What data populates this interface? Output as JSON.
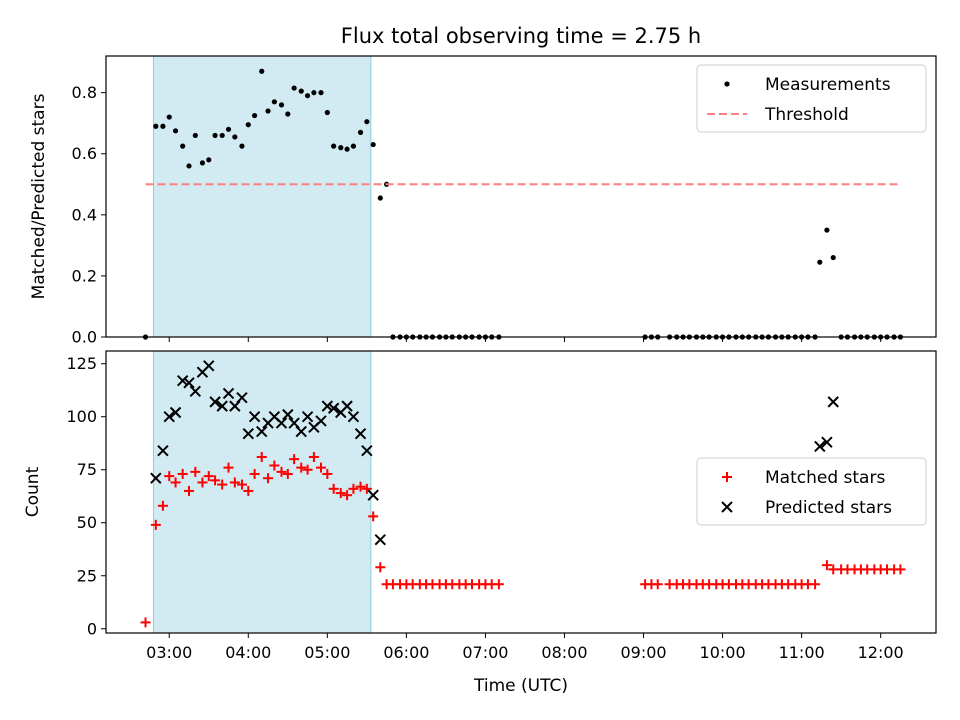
{
  "title": "Flux total observing time = 2.75 h",
  "chart_data": [
    {
      "type": "scatter",
      "panel": "top",
      "title": "Flux total observing time = 2.75 h",
      "ylabel": "Matched/Predicted stars",
      "xlabel": "",
      "x_unit": "hours (UTC)",
      "xlim": [
        2.2,
        12.7
      ],
      "ylim": [
        0.0,
        0.92
      ],
      "yticks": [
        0.0,
        0.2,
        0.4,
        0.6,
        0.8
      ],
      "ytick_labels": [
        "0.0",
        "0.2",
        "0.4",
        "0.6",
        "0.8"
      ],
      "shaded_interval": {
        "x0": 2.8,
        "x1": 5.55,
        "color": "#add8e6"
      },
      "legend": {
        "placement": "upper right",
        "entries": [
          "Measurements",
          "Threshold"
        ]
      },
      "series": [
        {
          "name": "Measurements",
          "marker": "dot",
          "color": "#000000",
          "points": [
            [
              2.7,
              0.0
            ],
            [
              2.83,
              0.69
            ],
            [
              2.92,
              0.69
            ],
            [
              3.0,
              0.72
            ],
            [
              3.08,
              0.675
            ],
            [
              3.17,
              0.625
            ],
            [
              3.25,
              0.56
            ],
            [
              3.33,
              0.66
            ],
            [
              3.42,
              0.57
            ],
            [
              3.5,
              0.58
            ],
            [
              3.58,
              0.66
            ],
            [
              3.67,
              0.66
            ],
            [
              3.75,
              0.68
            ],
            [
              3.83,
              0.655
            ],
            [
              3.92,
              0.625
            ],
            [
              4.0,
              0.695
            ],
            [
              4.08,
              0.725
            ],
            [
              4.17,
              0.87
            ],
            [
              4.25,
              0.74
            ],
            [
              4.33,
              0.77
            ],
            [
              4.42,
              0.76
            ],
            [
              4.5,
              0.73
            ],
            [
              4.58,
              0.815
            ],
            [
              4.67,
              0.805
            ],
            [
              4.75,
              0.79
            ],
            [
              4.83,
              0.8
            ],
            [
              4.92,
              0.8
            ],
            [
              5.0,
              0.735
            ],
            [
              5.08,
              0.625
            ],
            [
              5.17,
              0.62
            ],
            [
              5.25,
              0.615
            ],
            [
              5.33,
              0.625
            ],
            [
              5.42,
              0.67
            ],
            [
              5.5,
              0.705
            ],
            [
              5.58,
              0.63
            ],
            [
              5.67,
              0.455
            ],
            [
              5.75,
              0.5
            ],
            [
              5.83,
              0.0
            ],
            [
              5.92,
              0.0
            ],
            [
              6.0,
              0.0
            ],
            [
              6.08,
              0.0
            ],
            [
              6.17,
              0.0
            ],
            [
              6.25,
              0.0
            ],
            [
              6.33,
              0.0
            ],
            [
              6.42,
              0.0
            ],
            [
              6.5,
              0.0
            ],
            [
              6.58,
              0.0
            ],
            [
              6.67,
              0.0
            ],
            [
              6.75,
              0.0
            ],
            [
              6.83,
              0.0
            ],
            [
              6.92,
              0.0
            ],
            [
              7.0,
              0.0
            ],
            [
              7.08,
              0.0
            ],
            [
              7.17,
              0.0
            ],
            [
              9.02,
              0.0
            ],
            [
              9.1,
              0.0
            ],
            [
              9.18,
              0.0
            ],
            [
              9.33,
              0.0
            ],
            [
              9.42,
              0.0
            ],
            [
              9.5,
              0.0
            ],
            [
              9.58,
              0.0
            ],
            [
              9.67,
              0.0
            ],
            [
              9.75,
              0.0
            ],
            [
              9.83,
              0.0
            ],
            [
              9.92,
              0.0
            ],
            [
              10.0,
              0.0
            ],
            [
              10.08,
              0.0
            ],
            [
              10.17,
              0.0
            ],
            [
              10.25,
              0.0
            ],
            [
              10.33,
              0.0
            ],
            [
              10.42,
              0.0
            ],
            [
              10.5,
              0.0
            ],
            [
              10.58,
              0.0
            ],
            [
              10.67,
              0.0
            ],
            [
              10.75,
              0.0
            ],
            [
              10.83,
              0.0
            ],
            [
              10.92,
              0.0
            ],
            [
              11.0,
              0.0
            ],
            [
              11.08,
              0.0
            ],
            [
              11.17,
              0.0
            ],
            [
              11.23,
              0.245
            ],
            [
              11.32,
              0.35
            ],
            [
              11.4,
              0.26
            ],
            [
              11.5,
              0.0
            ],
            [
              11.58,
              0.0
            ],
            [
              11.67,
              0.0
            ],
            [
              11.75,
              0.0
            ],
            [
              11.83,
              0.0
            ],
            [
              11.92,
              0.0
            ],
            [
              12.0,
              0.0
            ],
            [
              12.08,
              0.0
            ],
            [
              12.17,
              0.0
            ],
            [
              12.25,
              0.0
            ]
          ]
        },
        {
          "name": "Threshold",
          "style": "dashed",
          "color": "#ff7f7f",
          "points": [
            [
              2.7,
              0.5
            ],
            [
              12.25,
              0.5
            ]
          ]
        }
      ]
    },
    {
      "type": "scatter",
      "panel": "bottom",
      "ylabel": "Count",
      "xlabel": "Time (UTC)",
      "x_unit": "hours (UTC)",
      "xlim": [
        2.2,
        12.7
      ],
      "ylim": [
        -2,
        131
      ],
      "xticks": [
        3,
        4,
        5,
        6,
        7,
        8,
        9,
        10,
        11,
        12
      ],
      "xtick_labels": [
        "03:00",
        "04:00",
        "05:00",
        "06:00",
        "07:00",
        "08:00",
        "09:00",
        "10:00",
        "11:00",
        "12:00"
      ],
      "yticks": [
        0,
        25,
        50,
        75,
        100,
        125
      ],
      "ytick_labels": [
        "0",
        "25",
        "50",
        "75",
        "100",
        "125"
      ],
      "shaded_interval": {
        "x0": 2.8,
        "x1": 5.55,
        "color": "#add8e6"
      },
      "legend": {
        "placement": "center right",
        "entries": [
          "Matched stars",
          "Predicted stars"
        ]
      },
      "series": [
        {
          "name": "Matched stars",
          "marker": "plus",
          "color": "#ff0000",
          "points": [
            [
              2.7,
              3
            ],
            [
              2.83,
              49
            ],
            [
              2.92,
              58
            ],
            [
              3.0,
              72
            ],
            [
              3.08,
              69
            ],
            [
              3.17,
              73
            ],
            [
              3.25,
              65
            ],
            [
              3.33,
              74
            ],
            [
              3.42,
              69
            ],
            [
              3.5,
              72
            ],
            [
              3.58,
              70
            ],
            [
              3.67,
              68
            ],
            [
              3.75,
              76
            ],
            [
              3.83,
              69
            ],
            [
              3.92,
              68
            ],
            [
              4.0,
              65
            ],
            [
              4.08,
              73
            ],
            [
              4.17,
              81
            ],
            [
              4.25,
              71
            ],
            [
              4.33,
              77
            ],
            [
              4.42,
              74
            ],
            [
              4.5,
              73
            ],
            [
              4.58,
              80
            ],
            [
              4.67,
              76
            ],
            [
              4.75,
              75
            ],
            [
              4.83,
              81
            ],
            [
              4.92,
              76
            ],
            [
              5.0,
              73
            ],
            [
              5.08,
              66
            ],
            [
              5.17,
              64
            ],
            [
              5.25,
              63
            ],
            [
              5.33,
              66
            ],
            [
              5.42,
              67
            ],
            [
              5.5,
              66
            ],
            [
              5.58,
              53
            ],
            [
              5.67,
              29
            ],
            [
              5.75,
              21
            ],
            [
              5.83,
              21
            ],
            [
              5.92,
              21
            ],
            [
              6.0,
              21
            ],
            [
              6.08,
              21
            ],
            [
              6.17,
              21
            ],
            [
              6.25,
              21
            ],
            [
              6.33,
              21
            ],
            [
              6.42,
              21
            ],
            [
              6.5,
              21
            ],
            [
              6.58,
              21
            ],
            [
              6.67,
              21
            ],
            [
              6.75,
              21
            ],
            [
              6.83,
              21
            ],
            [
              6.92,
              21
            ],
            [
              7.0,
              21
            ],
            [
              7.08,
              21
            ],
            [
              7.17,
              21
            ],
            [
              9.02,
              21
            ],
            [
              9.1,
              21
            ],
            [
              9.18,
              21
            ],
            [
              9.33,
              21
            ],
            [
              9.42,
              21
            ],
            [
              9.5,
              21
            ],
            [
              9.58,
              21
            ],
            [
              9.67,
              21
            ],
            [
              9.75,
              21
            ],
            [
              9.83,
              21
            ],
            [
              9.92,
              21
            ],
            [
              10.0,
              21
            ],
            [
              10.08,
              21
            ],
            [
              10.17,
              21
            ],
            [
              10.25,
              21
            ],
            [
              10.33,
              21
            ],
            [
              10.42,
              21
            ],
            [
              10.5,
              21
            ],
            [
              10.58,
              21
            ],
            [
              10.67,
              21
            ],
            [
              10.75,
              21
            ],
            [
              10.83,
              21
            ],
            [
              10.92,
              21
            ],
            [
              11.0,
              21
            ],
            [
              11.08,
              21
            ],
            [
              11.17,
              21
            ],
            [
              11.32,
              30
            ],
            [
              11.4,
              28
            ],
            [
              11.5,
              28
            ],
            [
              11.58,
              28
            ],
            [
              11.67,
              28
            ],
            [
              11.75,
              28
            ],
            [
              11.83,
              28
            ],
            [
              11.92,
              28
            ],
            [
              12.0,
              28
            ],
            [
              12.08,
              28
            ],
            [
              12.17,
              28
            ],
            [
              12.25,
              28
            ]
          ]
        },
        {
          "name": "Predicted stars",
          "marker": "x",
          "color": "#000000",
          "points": [
            [
              2.83,
              71
            ],
            [
              2.92,
              84
            ],
            [
              3.0,
              100
            ],
            [
              3.08,
              102
            ],
            [
              3.17,
              117
            ],
            [
              3.25,
              116
            ],
            [
              3.33,
              112
            ],
            [
              3.42,
              121
            ],
            [
              3.5,
              124
            ],
            [
              3.58,
              107
            ],
            [
              3.67,
              105
            ],
            [
              3.75,
              111
            ],
            [
              3.83,
              105
            ],
            [
              3.92,
              109
            ],
            [
              4.0,
              92
            ],
            [
              4.08,
              100
            ],
            [
              4.17,
              93
            ],
            [
              4.25,
              97
            ],
            [
              4.33,
              100
            ],
            [
              4.42,
              97
            ],
            [
              4.5,
              101
            ],
            [
              4.58,
              97
            ],
            [
              4.67,
              93
            ],
            [
              4.75,
              100
            ],
            [
              4.83,
              95
            ],
            [
              4.92,
              98
            ],
            [
              5.0,
              105
            ],
            [
              5.08,
              104
            ],
            [
              5.17,
              102
            ],
            [
              5.25,
              105
            ],
            [
              5.33,
              100
            ],
            [
              5.42,
              92
            ],
            [
              5.5,
              84
            ],
            [
              5.58,
              63
            ],
            [
              5.67,
              42
            ],
            [
              11.23,
              86
            ],
            [
              11.32,
              88
            ],
            [
              11.4,
              107
            ]
          ]
        }
      ]
    }
  ]
}
